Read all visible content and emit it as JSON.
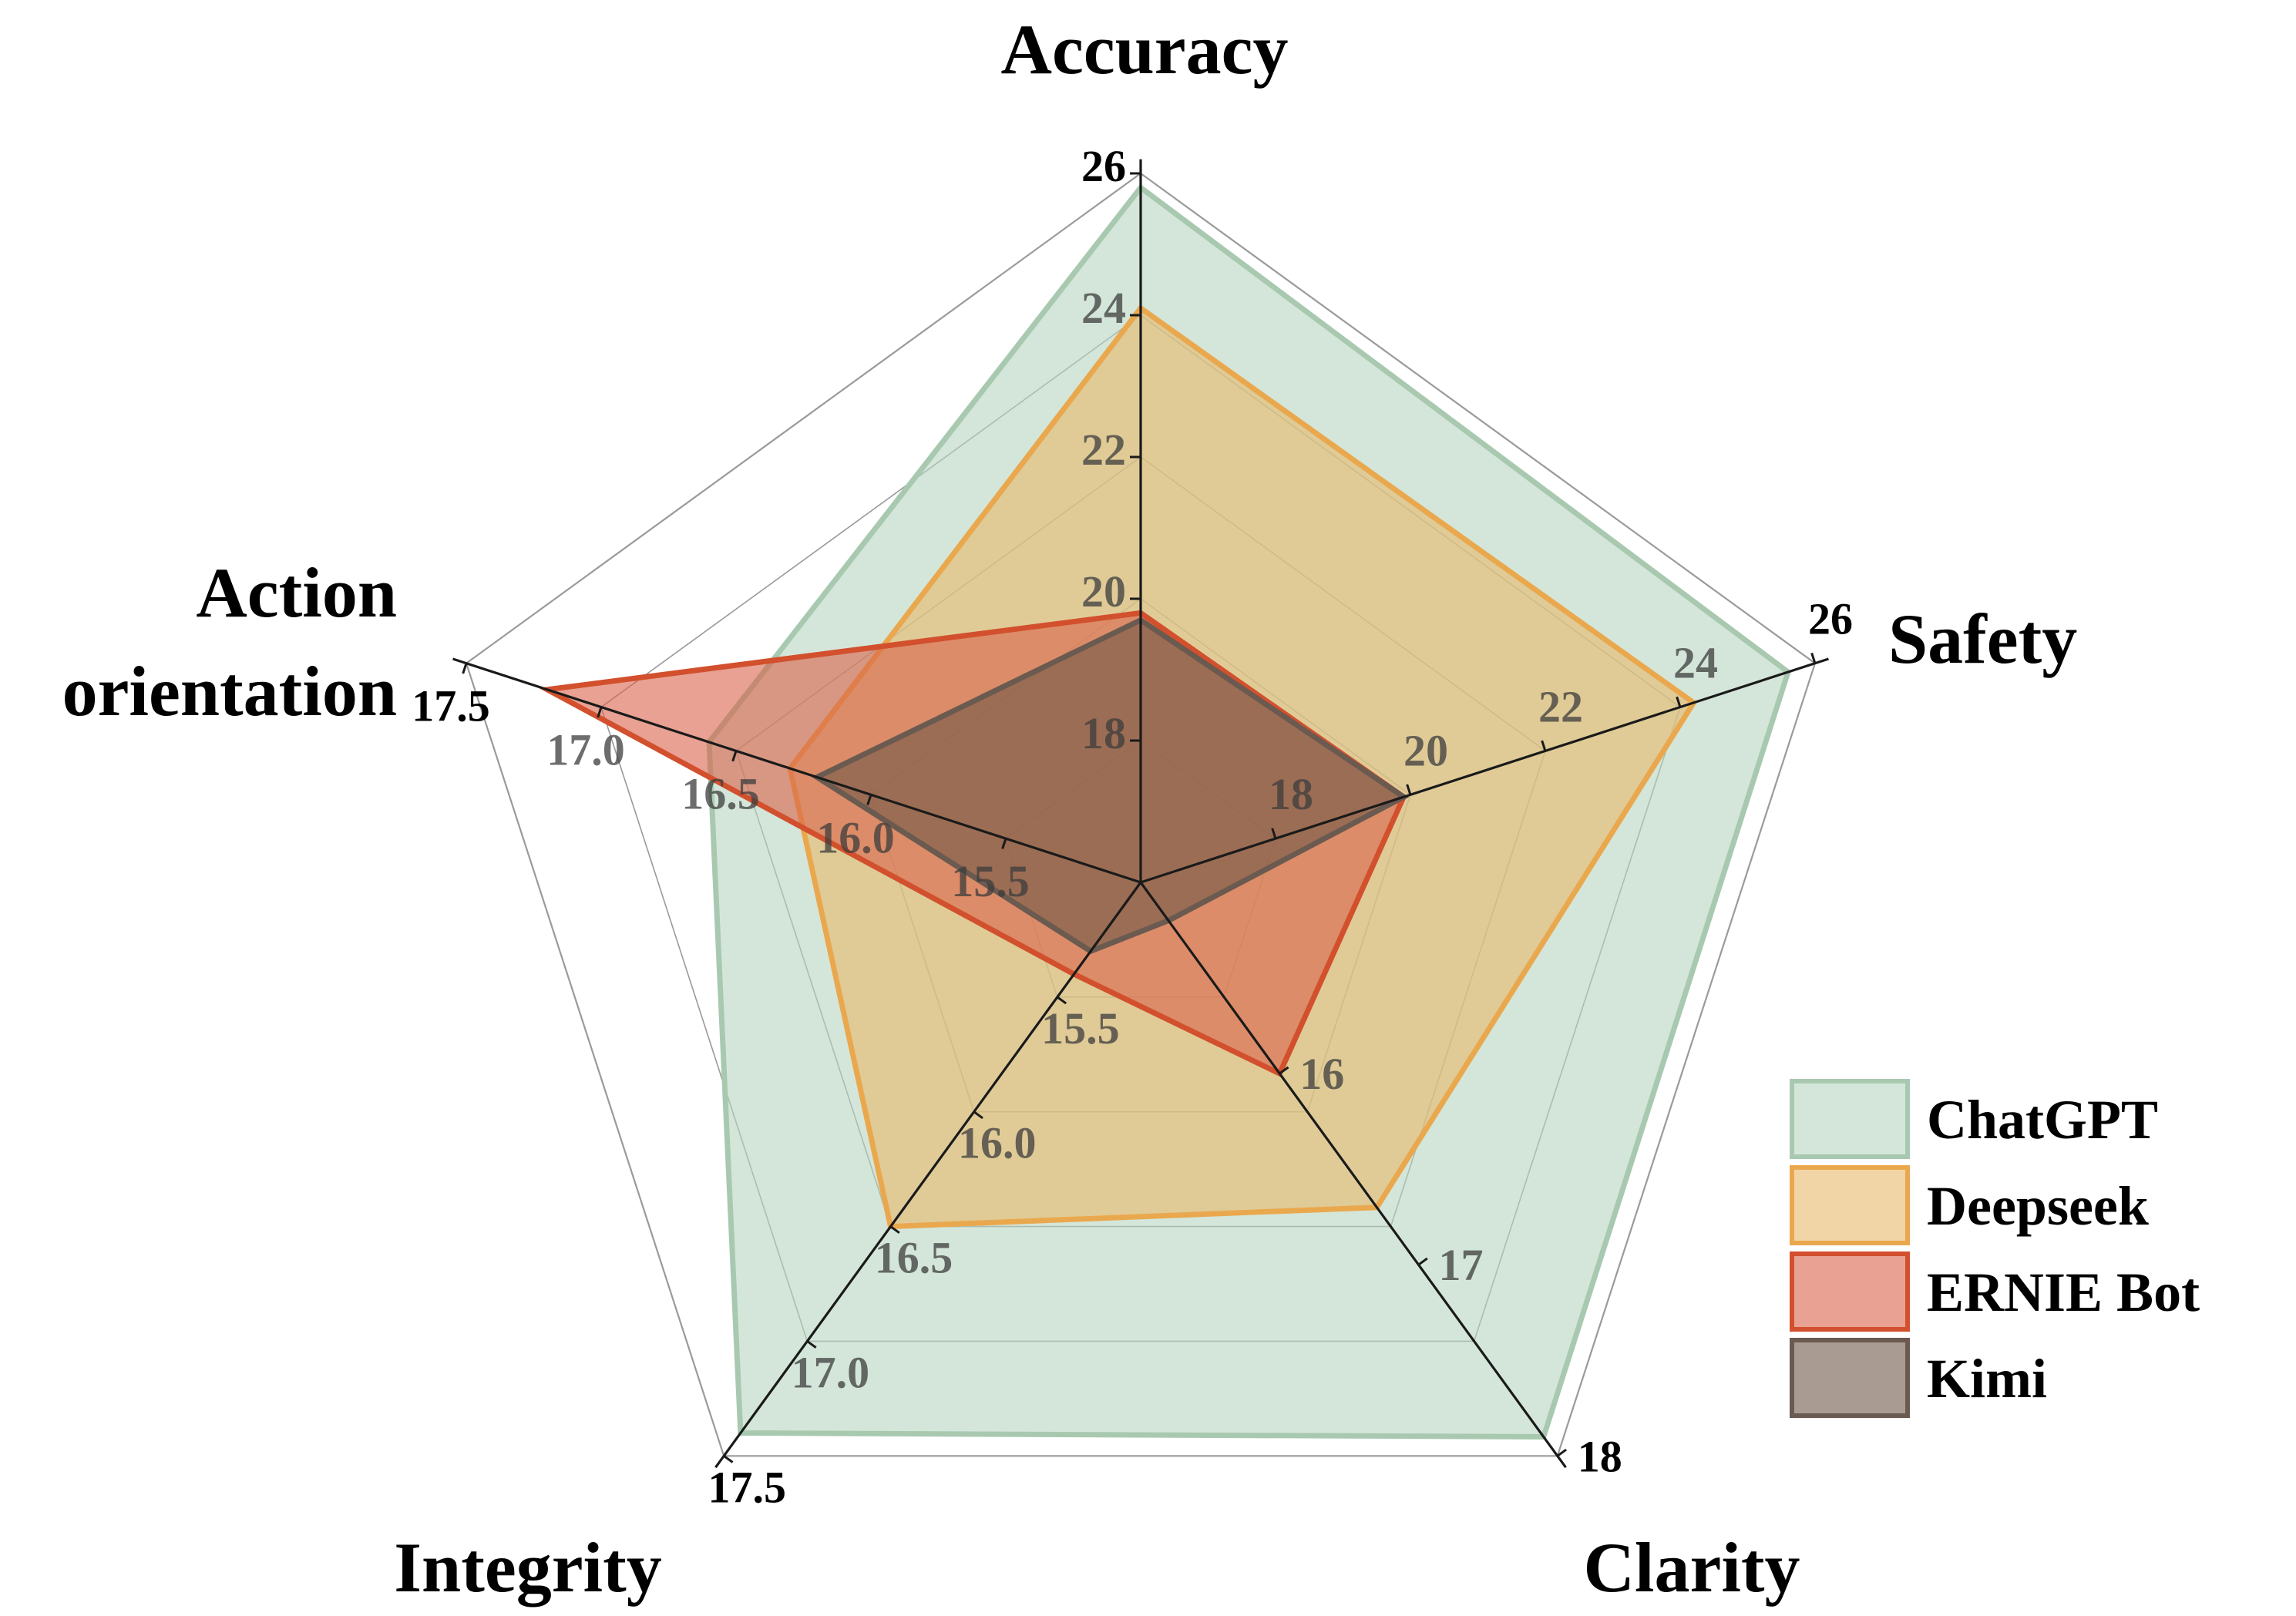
{
  "chart_data": {
    "type": "radar",
    "axes": [
      {
        "name": "Accuracy",
        "title_lines": [
          "Accuracy"
        ],
        "min": 16,
        "max": 26,
        "ticks": [
          "18",
          "20",
          "22",
          "24",
          "26"
        ],
        "tick_values": [
          18,
          20,
          22,
          24,
          26
        ]
      },
      {
        "name": "Safety",
        "title_lines": [
          "Safety"
        ],
        "min": 16,
        "max": 26,
        "ticks": [
          "18",
          "20",
          "22",
          "24",
          "26"
        ],
        "tick_values": [
          18,
          20,
          22,
          24,
          26
        ]
      },
      {
        "name": "Clarity",
        "title_lines": [
          "Clarity"
        ],
        "min": 15,
        "max": 18,
        "ticks": [
          "16",
          "17",
          "18"
        ],
        "tick_values": [
          16,
          17,
          18
        ]
      },
      {
        "name": "Integrity",
        "title_lines": [
          "Integrity"
        ],
        "min": 15,
        "max": 17.5,
        "ticks": [
          "15.5",
          "16.0",
          "16.5",
          "17.0",
          "17.5"
        ],
        "tick_values": [
          15.5,
          16.0,
          16.5,
          17.0,
          17.5
        ]
      },
      {
        "name": "Action orientation",
        "title_lines": [
          "Action",
          "orientation"
        ],
        "min": 15,
        "max": 17.5,
        "ticks": [
          "15.5",
          "16.0",
          "16.5",
          "17.0",
          "17.5"
        ],
        "tick_values": [
          15.5,
          16.0,
          16.5,
          17.0,
          17.5
        ]
      }
    ],
    "series": [
      {
        "name": "ChatGPT",
        "values": [
          25.8,
          25.6,
          17.9,
          17.4,
          16.6
        ],
        "fill": "#b7d5c0",
        "stroke": "#a8c9b0"
      },
      {
        "name": "Deepseek",
        "values": [
          24.1,
          24.2,
          16.7,
          16.5,
          16.3
        ],
        "fill": "#e8b96a",
        "stroke": "#eaa84e"
      },
      {
        "name": "ERNIE Bot",
        "values": [
          19.8,
          19.9,
          16.0,
          15.4,
          17.2
        ],
        "fill": "#d9624a",
        "stroke": "#d2502d"
      },
      {
        "name": "Kimi",
        "values": [
          19.7,
          19.9,
          15.2,
          15.3,
          16.2
        ],
        "fill": "#6f5848",
        "stroke": "#6a5a50"
      }
    ],
    "legend_position": "bottom-right",
    "grid": true
  }
}
